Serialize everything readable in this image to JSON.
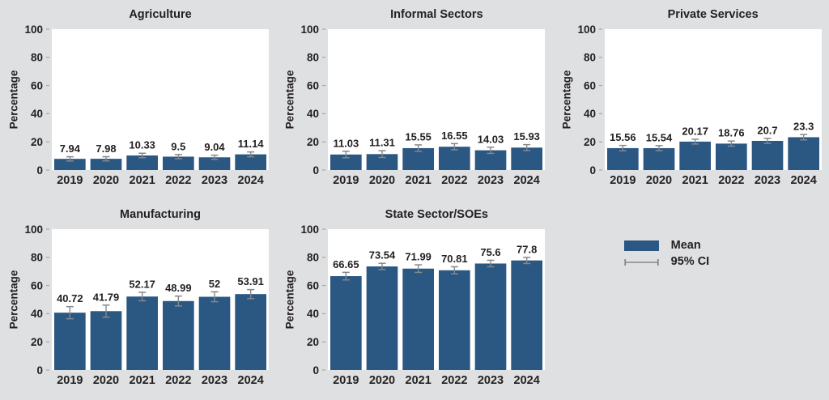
{
  "figure": {
    "background": "#dee0e2",
    "panel_background": "#ffffff",
    "bar_color": "#2b5783",
    "error_color": "#85888b",
    "text_color": "#231f20",
    "tick_color": "#a6a9ab"
  },
  "chart_data": [
    {
      "type": "bar",
      "title": "Agriculture",
      "xlabel": "",
      "ylabel": "Percentage",
      "ylim": [
        0,
        100
      ],
      "yticks": [
        0,
        20,
        40,
        60,
        80,
        100
      ],
      "categories": [
        "2019",
        "2020",
        "2021",
        "2022",
        "2023",
        "2024"
      ],
      "values": [
        7.94,
        7.98,
        10.33,
        9.5,
        9.04,
        11.14
      ],
      "value_labels": [
        "7.94",
        "7.98",
        "10.33",
        "9.5",
        "9.04",
        "11.14"
      ],
      "ci_half": [
        1.5,
        1.5,
        1.6,
        1.5,
        1.5,
        1.7
      ],
      "grid": false,
      "series_name": "Mean"
    },
    {
      "type": "bar",
      "title": "Informal Sectors",
      "xlabel": "",
      "ylabel": "Percentage",
      "ylim": [
        0,
        100
      ],
      "yticks": [
        0,
        20,
        40,
        60,
        80,
        100
      ],
      "categories": [
        "2019",
        "2020",
        "2021",
        "2022",
        "2023",
        "2024"
      ],
      "values": [
        11.03,
        11.31,
        15.55,
        16.55,
        14.03,
        15.93
      ],
      "value_labels": [
        "11.03",
        "11.31",
        "15.55",
        "16.55",
        "14.03",
        "15.93"
      ],
      "ci_half": [
        2.3,
        2.4,
        2.3,
        2.2,
        2.2,
        2.1
      ],
      "grid": false,
      "series_name": "Mean"
    },
    {
      "type": "bar",
      "title": "Private Services",
      "xlabel": "",
      "ylabel": "Percentage",
      "ylim": [
        0,
        100
      ],
      "yticks": [
        0,
        20,
        40,
        60,
        80,
        100
      ],
      "categories": [
        "2019",
        "2020",
        "2021",
        "2022",
        "2023",
        "2024"
      ],
      "values": [
        15.56,
        15.54,
        20.17,
        18.76,
        20.7,
        23.3
      ],
      "value_labels": [
        "15.56",
        "15.54",
        "20.17",
        "18.76",
        "20.7",
        "23.3"
      ],
      "ci_half": [
        1.9,
        1.8,
        1.7,
        1.8,
        1.8,
        1.9
      ],
      "grid": false,
      "series_name": "Mean"
    },
    {
      "type": "bar",
      "title": "Manufacturing",
      "xlabel": "",
      "ylabel": "Percentage",
      "ylim": [
        0,
        100
      ],
      "yticks": [
        0,
        20,
        40,
        60,
        80,
        100
      ],
      "categories": [
        "2019",
        "2020",
        "2021",
        "2022",
        "2023",
        "2024"
      ],
      "values": [
        40.72,
        41.79,
        52.17,
        48.99,
        52,
        53.91
      ],
      "value_labels": [
        "40.72",
        "41.79",
        "52.17",
        "48.99",
        "52",
        "53.91"
      ],
      "ci_half": [
        4.3,
        4.3,
        3.0,
        3.5,
        3.5,
        3.2
      ],
      "grid": false,
      "series_name": "Mean"
    },
    {
      "type": "bar",
      "title": "State Sector/SOEs",
      "xlabel": "",
      "ylabel": "Percentage",
      "ylim": [
        0,
        100
      ],
      "yticks": [
        0,
        20,
        40,
        60,
        80,
        100
      ],
      "categories": [
        "2019",
        "2020",
        "2021",
        "2022",
        "2023",
        "2024"
      ],
      "values": [
        66.65,
        73.54,
        71.99,
        70.81,
        75.6,
        77.8
      ],
      "value_labels": [
        "66.65",
        "73.54",
        "71.99",
        "70.81",
        "75.6",
        "77.8"
      ],
      "ci_half": [
        2.7,
        2.2,
        2.7,
        2.5,
        2.3,
        2.2
      ],
      "grid": false,
      "series_name": "Mean"
    }
  ],
  "legend": {
    "position": "bottom-right",
    "mean_label": "Mean",
    "ci_label": "95% CI"
  }
}
